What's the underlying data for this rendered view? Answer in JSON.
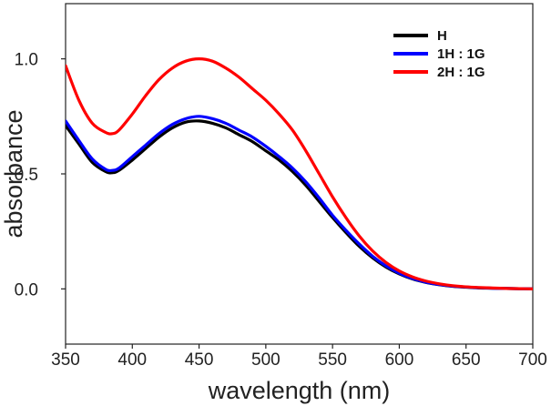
{
  "chart_data": {
    "type": "line",
    "xlabel": "wavelength (nm)",
    "ylabel": "absorbance",
    "xlim": [
      350,
      700
    ],
    "ylim": [
      -0.24,
      1.24
    ],
    "x_ticks": [
      {
        "value": 350,
        "label": "350"
      },
      {
        "value": 400,
        "label": "400"
      },
      {
        "value": 450,
        "label": "450"
      },
      {
        "value": 500,
        "label": "500"
      },
      {
        "value": 550,
        "label": "550"
      },
      {
        "value": 600,
        "label": "600"
      },
      {
        "value": 650,
        "label": "650"
      },
      {
        "value": 700,
        "label": "700"
      }
    ],
    "y_ticks": [
      {
        "value": 0.0,
        "label": "0.0"
      },
      {
        "value": 0.5,
        "label": "0.5"
      },
      {
        "value": 1.0,
        "label": "1.0"
      }
    ],
    "legend_position": "top-right",
    "x": [
      350,
      360,
      370,
      380,
      385,
      390,
      400,
      410,
      420,
      430,
      440,
      450,
      460,
      470,
      480,
      490,
      500,
      510,
      520,
      530,
      540,
      550,
      560,
      570,
      580,
      590,
      600,
      610,
      620,
      630,
      640,
      650,
      660,
      670,
      680,
      690,
      700
    ],
    "series": [
      {
        "name": "H",
        "color": "#000000",
        "values": [
          0.71,
          0.63,
          0.55,
          0.51,
          0.505,
          0.515,
          0.56,
          0.61,
          0.66,
          0.7,
          0.725,
          0.73,
          0.72,
          0.7,
          0.67,
          0.64,
          0.6,
          0.56,
          0.51,
          0.45,
          0.38,
          0.31,
          0.245,
          0.185,
          0.135,
          0.095,
          0.065,
          0.043,
          0.028,
          0.018,
          0.011,
          0.007,
          0.004,
          0.003,
          0.002,
          0.001,
          0.0
        ]
      },
      {
        "name": "1H : 1G",
        "color": "#0000ff",
        "values": [
          0.73,
          0.645,
          0.565,
          0.52,
          0.515,
          0.525,
          0.575,
          0.625,
          0.675,
          0.715,
          0.74,
          0.75,
          0.74,
          0.72,
          0.69,
          0.66,
          0.62,
          0.575,
          0.525,
          0.465,
          0.395,
          0.32,
          0.255,
          0.195,
          0.142,
          0.1,
          0.068,
          0.045,
          0.029,
          0.019,
          0.012,
          0.008,
          0.005,
          0.003,
          0.002,
          0.001,
          0.0
        ]
      },
      {
        "name": "2H : 1G",
        "color": "#ff0000",
        "values": [
          0.97,
          0.82,
          0.72,
          0.68,
          0.675,
          0.69,
          0.76,
          0.84,
          0.91,
          0.96,
          0.99,
          1.0,
          0.99,
          0.96,
          0.92,
          0.87,
          0.82,
          0.76,
          0.69,
          0.6,
          0.5,
          0.4,
          0.31,
          0.23,
          0.165,
          0.115,
          0.078,
          0.052,
          0.034,
          0.022,
          0.014,
          0.009,
          0.006,
          0.004,
          0.002,
          0.001,
          0.0
        ]
      }
    ]
  }
}
